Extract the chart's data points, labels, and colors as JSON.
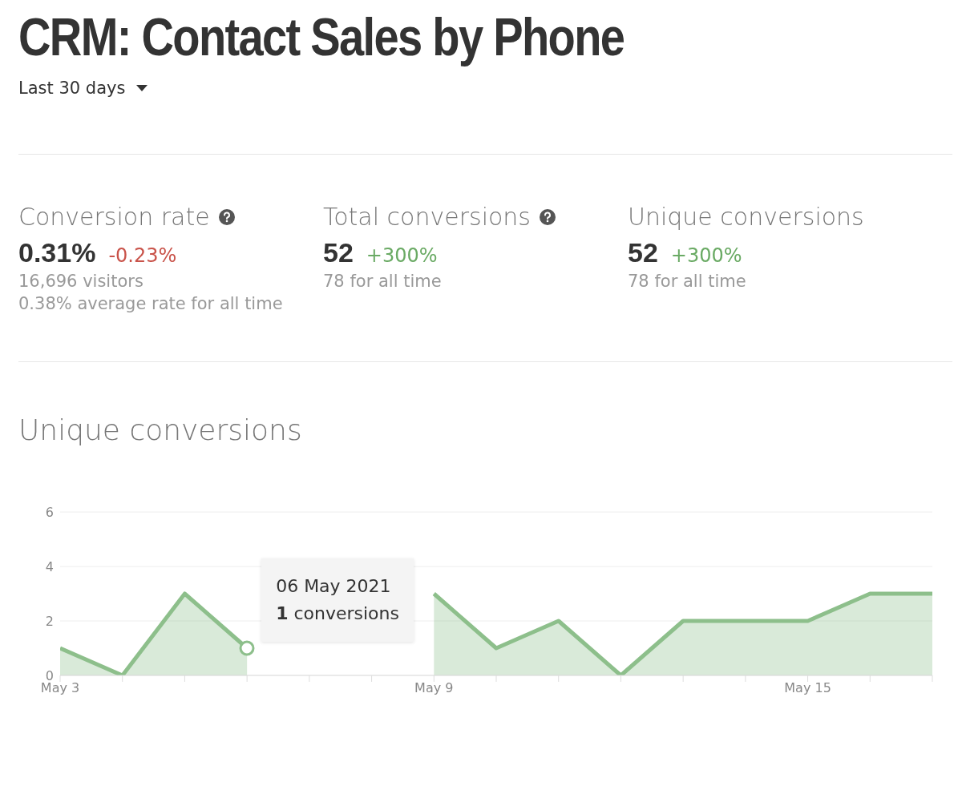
{
  "chart_data": [
    {
      "type": "other",
      "title": "CRM: Contact Sales by Phone",
      "annotations": [
        "Last 30 days",
        "Conversion rate",
        "0.31%",
        "-0.23%",
        "16,696 visitors",
        "0.38% average rate for all time",
        "Total conversions",
        "52",
        "+300%",
        "78 for all time",
        "Unique conversions",
        "52",
        "+300%",
        "78 for all time"
      ]
    },
    {
      "type": "area",
      "title": "Unique conversions",
      "color": "#8dbf8b",
      "x": [
        "--05-03",
        "--05-04",
        "--05-05",
        "--05-06",
        "--05-07",
        "--05-08",
        "--05-09",
        "--05-10",
        "--05-11",
        "--05-12",
        "--05-13",
        "--05-14",
        "--05-15",
        "--05-16",
        "--05-17"
      ],
      "values": [
        1,
        0,
        3,
        1,
        null,
        null,
        3,
        1,
        2,
        0,
        2,
        2,
        2,
        3,
        3
      ],
      "xlim": [
        "--05-03",
        "--05-17"
      ],
      "xticks": [
        {
          "value": "--05-03",
          "label": "May 3"
        },
        {
          "value": "--05-04",
          "label": null
        },
        {
          "value": "--05-05",
          "label": null
        },
        {
          "value": "--05-06",
          "label": null
        },
        {
          "value": "--05-07",
          "label": null
        },
        {
          "value": "--05-08",
          "label": null
        },
        {
          "value": "--05-09",
          "label": "May 9"
        },
        {
          "value": "--05-10",
          "label": null
        },
        {
          "value": "--05-11",
          "label": null
        },
        {
          "value": "--05-12",
          "label": null
        },
        {
          "value": "--05-13",
          "label": null
        },
        {
          "value": "--05-14",
          "label": null
        },
        {
          "value": "--05-15",
          "label": "May 15"
        },
        {
          "value": "--05-16",
          "label": null
        },
        {
          "value": "--05-17",
          "label": null
        }
      ],
      "ylim": [
        0,
        6
      ],
      "yticks": [
        0,
        2,
        4,
        6
      ],
      "grid": "y",
      "annotations": [
        {
          "text": "06 May 2021\n1 conversions",
          "x": "--05-06",
          "y": 1
        }
      ]
    }
  ]
}
